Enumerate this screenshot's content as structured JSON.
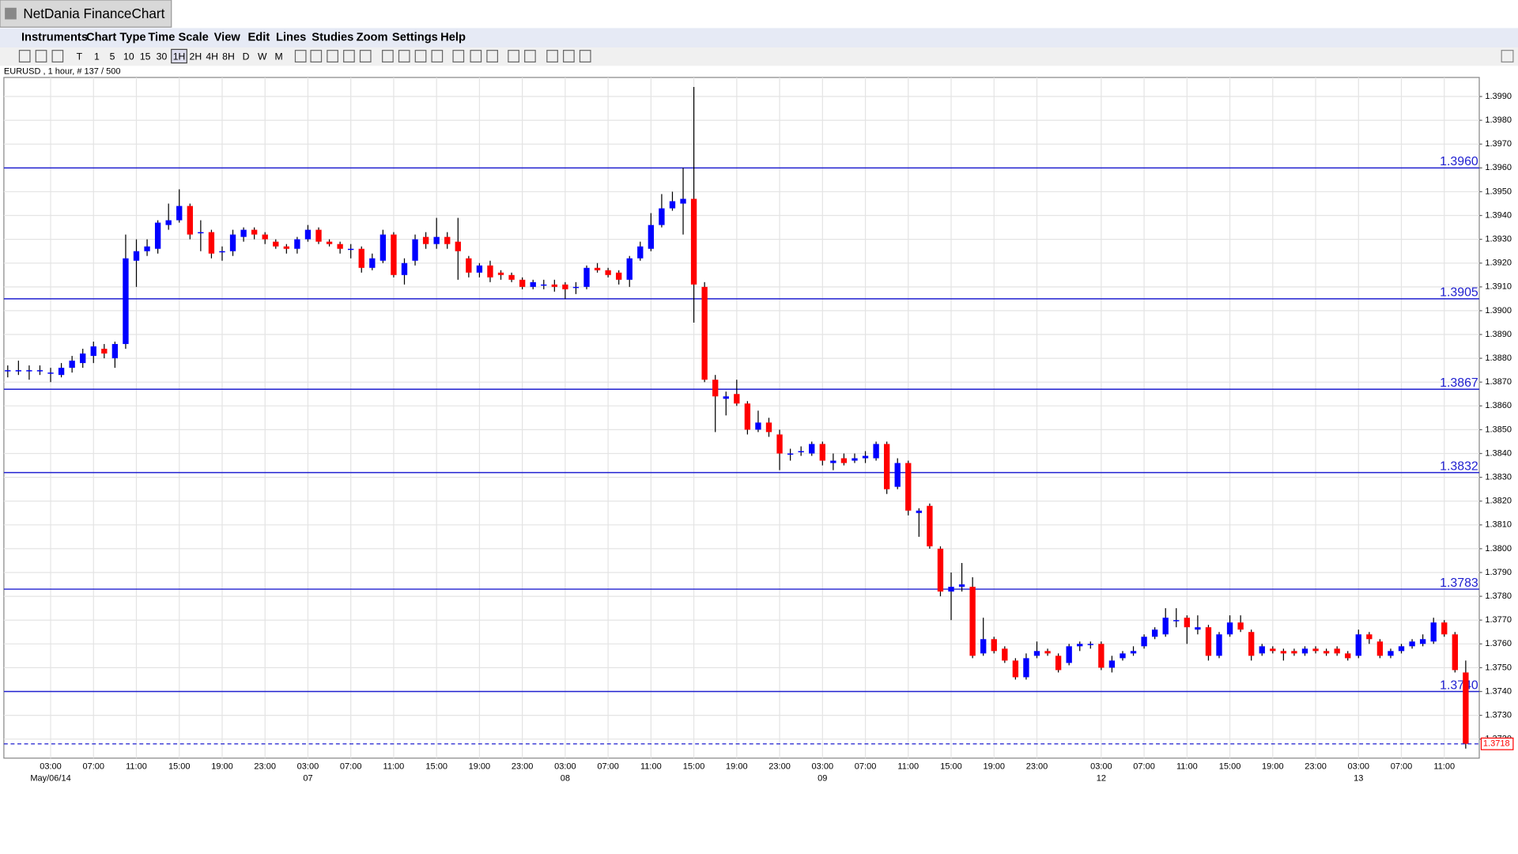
{
  "app_title": "NetDania FinanceChart",
  "menu": [
    "Instruments",
    "Chart Type",
    "Time Scale",
    "View",
    "Edit",
    "Lines",
    "Studies",
    "Zoom",
    "Settings",
    "Help"
  ],
  "toolbar": [
    "T",
    "1",
    "5",
    "10",
    "15",
    "30",
    "1H",
    "2H",
    "4H",
    "8H",
    "D",
    "W",
    "M"
  ],
  "chart_data": {
    "type": "candlestick",
    "title": "EURUSD , 1 hour, # 137 / 500",
    "up_color": "#0000ff",
    "down_color": "#ff0000",
    "wick_color": "#000000",
    "line_color": "#2020d0",
    "grid": true,
    "ylim": [
      1.3712,
      1.3998
    ],
    "yticks": [
      {
        "value": 1.372,
        "label": "1.3720"
      },
      {
        "value": 1.373,
        "label": "1.3730"
      },
      {
        "value": 1.374,
        "label": "1.3740"
      },
      {
        "value": 1.375,
        "label": "1.3750"
      },
      {
        "value": 1.376,
        "label": "1.3760"
      },
      {
        "value": 1.377,
        "label": "1.3770"
      },
      {
        "value": 1.378,
        "label": "1.3780"
      },
      {
        "value": 1.379,
        "label": "1.3790"
      },
      {
        "value": 1.38,
        "label": "1.3800"
      },
      {
        "value": 1.381,
        "label": "1.3810"
      },
      {
        "value": 1.382,
        "label": "1.3820"
      },
      {
        "value": 1.383,
        "label": "1.3830"
      },
      {
        "value": 1.384,
        "label": "1.3840"
      },
      {
        "value": 1.385,
        "label": "1.3850"
      },
      {
        "value": 1.386,
        "label": "1.3860"
      },
      {
        "value": 1.387,
        "label": "1.3870"
      },
      {
        "value": 1.388,
        "label": "1.3880"
      },
      {
        "value": 1.389,
        "label": "1.3890"
      },
      {
        "value": 1.39,
        "label": "1.3900"
      },
      {
        "value": 1.391,
        "label": "1.3910"
      },
      {
        "value": 1.392,
        "label": "1.3920"
      },
      {
        "value": 1.393,
        "label": "1.3930"
      },
      {
        "value": 1.394,
        "label": "1.3940"
      },
      {
        "value": 1.395,
        "label": "1.3950"
      },
      {
        "value": 1.396,
        "label": "1.3960"
      },
      {
        "value": 1.397,
        "label": "1.3970"
      },
      {
        "value": 1.398,
        "label": "1.3980"
      },
      {
        "value": 1.399,
        "label": "1.3990"
      }
    ],
    "lines": [
      {
        "value": 1.396,
        "label": "1.3960"
      },
      {
        "value": 1.3905,
        "label": "1.3905"
      },
      {
        "value": 1.3867,
        "label": "1.3867"
      },
      {
        "value": 1.3832,
        "label": "1.3832"
      },
      {
        "value": 1.3783,
        "label": "1.3783"
      },
      {
        "value": 1.374,
        "label": "1.3740"
      }
    ],
    "last_price": {
      "value": 1.3718,
      "label": "1.3718"
    },
    "categories": [
      null,
      null,
      null,
      null,
      "03:00",
      null,
      null,
      null,
      "07:00",
      null,
      null,
      null,
      "11:00",
      null,
      null,
      null,
      "15:00",
      null,
      null,
      null,
      "19:00",
      null,
      null,
      null,
      "23:00",
      null,
      null,
      null,
      "03:00",
      null,
      null,
      null,
      "07:00",
      null,
      null,
      null,
      "11:00",
      null,
      null,
      null,
      "15:00",
      null,
      null,
      null,
      "19:00",
      null,
      null,
      null,
      "23:00",
      null,
      null,
      null,
      "03:00",
      null,
      null,
      null,
      "07:00",
      null,
      null,
      null,
      "11:00",
      null,
      null,
      null,
      "15:00",
      null,
      null,
      null,
      "19:00",
      null,
      null,
      null,
      "23:00",
      null,
      null,
      null,
      "03:00",
      null,
      null,
      null,
      "07:00",
      null,
      null,
      null,
      "11:00",
      null,
      null,
      null,
      "15:00",
      null,
      null,
      null,
      "19:00",
      null,
      null,
      null,
      "23:00",
      null,
      null,
      null,
      null,
      null,
      "03:00",
      null,
      null,
      null,
      "07:00",
      null,
      null,
      null,
      "11:00",
      null,
      null,
      null,
      "15:00",
      null,
      null,
      null,
      "19:00",
      null,
      null,
      null,
      "23:00",
      null,
      null,
      null,
      "03:00",
      null,
      null,
      null,
      "07:00",
      null,
      null,
      null,
      "11:00",
      null,
      null
    ],
    "dates": [
      null,
      null,
      null,
      null,
      "May/06/14",
      null,
      null,
      null,
      null,
      null,
      null,
      null,
      null,
      null,
      null,
      null,
      null,
      null,
      null,
      null,
      null,
      null,
      null,
      null,
      null,
      null,
      null,
      null,
      "07",
      null,
      null,
      null,
      null,
      null,
      null,
      null,
      null,
      null,
      null,
      null,
      null,
      null,
      null,
      null,
      null,
      null,
      null,
      null,
      null,
      null,
      null,
      null,
      "08",
      null,
      null,
      null,
      null,
      null,
      null,
      null,
      null,
      null,
      null,
      null,
      null,
      null,
      null,
      null,
      null,
      null,
      null,
      null,
      null,
      null,
      null,
      null,
      "09",
      null,
      null,
      null,
      null,
      null,
      null,
      null,
      null,
      null,
      null,
      null,
      null,
      null,
      null,
      null,
      null,
      null,
      null,
      null,
      null,
      null,
      null,
      null,
      null,
      null,
      "12",
      null,
      null,
      null,
      null,
      null,
      null,
      null,
      null,
      null,
      null,
      null,
      null,
      null,
      null,
      null,
      null,
      null,
      null,
      null,
      null,
      null,
      null,
      null,
      "13",
      null,
      null,
      null,
      null,
      null,
      null,
      null,
      null,
      null,
      null
    ],
    "series": [
      {
        "name": "EURUSD",
        "open": [
          1.3875,
          1.3875,
          1.3875,
          1.3875,
          1.3874,
          1.3873,
          1.3876,
          1.3878,
          1.3881,
          1.3884,
          1.388,
          1.3886,
          1.3921,
          1.3925,
          1.3926,
          1.3936,
          1.3938,
          1.3944,
          1.3933,
          1.3933,
          1.3925,
          1.3925,
          1.3931,
          1.3934,
          1.3932,
          1.3929,
          1.3927,
          1.3926,
          1.393,
          1.3934,
          1.3929,
          1.3928,
          1.3926,
          1.3926,
          1.3918,
          1.3921,
          1.3932,
          1.3915,
          1.3921,
          1.3931,
          1.3928,
          1.3931,
          1.3929,
          1.3922,
          1.3916,
          1.3919,
          1.3916,
          1.3915,
          1.3913,
          1.391,
          1.3911,
          1.3911,
          1.3911,
          1.391,
          1.391,
          1.3918,
          1.3917,
          1.3916,
          1.3913,
          1.3922,
          1.3926,
          1.3936,
          1.3943,
          1.3945,
          1.3947,
          1.391,
          1.3871,
          1.3863,
          1.3865,
          1.3861,
          1.385,
          1.3853,
          1.3848,
          1.384,
          1.3841,
          1.384,
          1.3844,
          1.3836,
          1.3838,
          1.3837,
          1.3838,
          1.3838,
          1.3844,
          1.3826,
          1.3836,
          1.3815,
          1.3818,
          1.38,
          1.3782,
          1.3784,
          1.3784,
          1.3756,
          1.3762,
          1.3758,
          1.3753,
          1.3746,
          1.3755,
          1.3757,
          1.3755,
          1.3752,
          1.3759,
          1.376,
          1.376,
          1.375,
          1.3754,
          1.3756,
          1.3759,
          1.3763,
          1.3764,
          1.377,
          1.3771,
          1.3766,
          1.3767,
          1.3755,
          1.3764,
          1.3769,
          1.3765,
          1.3756,
          1.3758,
          1.3757,
          1.3757,
          1.3756,
          1.3758,
          1.3757,
          1.3758,
          1.3756,
          1.3755,
          1.3764,
          1.3761,
          1.3755,
          1.3757,
          1.3759,
          1.376,
          1.3761,
          1.3769,
          1.3764,
          1.3748
        ],
        "high": [
          1.3877,
          1.3879,
          1.3877,
          1.3877,
          1.3876,
          1.3878,
          1.3881,
          1.3884,
          1.3887,
          1.3886,
          1.3887,
          1.3932,
          1.393,
          1.393,
          1.3938,
          1.3945,
          1.3951,
          1.3945,
          1.3938,
          1.3934,
          1.3927,
          1.3934,
          1.3935,
          1.3935,
          1.3933,
          1.393,
          1.3928,
          1.3931,
          1.3936,
          1.3935,
          1.393,
          1.3929,
          1.3928,
          1.3927,
          1.3924,
          1.3934,
          1.3933,
          1.3922,
          1.3932,
          1.3933,
          1.3939,
          1.3933,
          1.3939,
          1.3923,
          1.392,
          1.3921,
          1.3917,
          1.3916,
          1.3914,
          1.3913,
          1.3913,
          1.3913,
          1.3912,
          1.3912,
          1.3919,
          1.392,
          1.3918,
          1.3917,
          1.3923,
          1.3929,
          1.3941,
          1.3949,
          1.395,
          1.396,
          1.3994,
          1.3912,
          1.3873,
          1.3866,
          1.3871,
          1.3862,
          1.3858,
          1.3855,
          1.385,
          1.3842,
          1.3843,
          1.3845,
          1.3845,
          1.384,
          1.384,
          1.384,
          1.3841,
          1.3845,
          1.3845,
          1.3838,
          1.3837,
          1.3817,
          1.3819,
          1.3801,
          1.379,
          1.3794,
          1.3788,
          1.3771,
          1.3763,
          1.3759,
          1.3754,
          1.3756,
          1.3761,
          1.3758,
          1.3756,
          1.376,
          1.3761,
          1.3761,
          1.3761,
          1.3755,
          1.3757,
          1.3759,
          1.3764,
          1.3767,
          1.3775,
          1.3775,
          1.3772,
          1.3772,
          1.3768,
          1.3765,
          1.3772,
          1.3772,
          1.3766,
          1.376,
          1.3759,
          1.3758,
          1.3758,
          1.3759,
          1.3759,
          1.3758,
          1.3759,
          1.3757,
          1.3766,
          1.3765,
          1.3762,
          1.3758,
          1.376,
          1.3762,
          1.3764,
          1.3771,
          1.377,
          1.3765,
          1.3753
        ],
        "low": [
          1.3872,
          1.3873,
          1.3871,
          1.3873,
          1.387,
          1.3872,
          1.3874,
          1.3876,
          1.3878,
          1.388,
          1.3876,
          1.3884,
          1.391,
          1.3923,
          1.3924,
          1.3934,
          1.3937,
          1.393,
          1.3925,
          1.3922,
          1.3921,
          1.3923,
          1.3929,
          1.393,
          1.3928,
          1.3926,
          1.3924,
          1.3924,
          1.3929,
          1.3928,
          1.3927,
          1.3924,
          1.3922,
          1.3916,
          1.3917,
          1.392,
          1.3914,
          1.3911,
          1.3919,
          1.3926,
          1.3926,
          1.3926,
          1.3913,
          1.3914,
          1.3914,
          1.3912,
          1.3913,
          1.3912,
          1.3909,
          1.3909,
          1.3909,
          1.3908,
          1.3905,
          1.3907,
          1.3909,
          1.3916,
          1.3914,
          1.3911,
          1.391,
          1.3921,
          1.3925,
          1.3935,
          1.3942,
          1.3932,
          1.3895,
          1.387,
          1.3849,
          1.3856,
          1.386,
          1.3848,
          1.3849,
          1.3847,
          1.3833,
          1.3837,
          1.3839,
          1.3839,
          1.3835,
          1.3833,
          1.3835,
          1.3836,
          1.3836,
          1.3837,
          1.3823,
          1.3825,
          1.3814,
          1.3805,
          1.38,
          1.378,
          1.377,
          1.3782,
          1.3754,
          1.3755,
          1.3756,
          1.3752,
          1.3745,
          1.3745,
          1.3754,
          1.3755,
          1.3748,
          1.3751,
          1.3757,
          1.3758,
          1.3749,
          1.3748,
          1.3753,
          1.3755,
          1.3758,
          1.3762,
          1.3763,
          1.3767,
          1.376,
          1.3764,
          1.3753,
          1.3754,
          1.3763,
          1.3765,
          1.3753,
          1.3755,
          1.3756,
          1.3753,
          1.3755,
          1.3755,
          1.3756,
          1.3755,
          1.3755,
          1.3753,
          1.3754,
          1.376,
          1.3754,
          1.3754,
          1.3756,
          1.3758,
          1.3759,
          1.376,
          1.3763,
          1.3748,
          1.3716
        ],
        "close": [
          1.3875,
          1.3875,
          1.3875,
          1.3875,
          1.3874,
          1.3876,
          1.3879,
          1.3882,
          1.3885,
          1.3882,
          1.3886,
          1.3922,
          1.3925,
          1.3927,
          1.3937,
          1.3938,
          1.3944,
          1.3932,
          1.3933,
          1.3924,
          1.3925,
          1.3932,
          1.3934,
          1.3932,
          1.393,
          1.3927,
          1.3926,
          1.393,
          1.3934,
          1.3929,
          1.3928,
          1.3926,
          1.3926,
          1.3918,
          1.3922,
          1.3932,
          1.3915,
          1.392,
          1.393,
          1.3928,
          1.3931,
          1.3928,
          1.3925,
          1.3916,
          1.3919,
          1.3914,
          1.3915,
          1.3913,
          1.391,
          1.3912,
          1.3911,
          1.391,
          1.3909,
          1.391,
          1.3918,
          1.3917,
          1.3915,
          1.3913,
          1.3922,
          1.3927,
          1.3936,
          1.3943,
          1.3946,
          1.3947,
          1.3911,
          1.3871,
          1.3864,
          1.3864,
          1.3861,
          1.385,
          1.3853,
          1.3849,
          1.384,
          1.384,
          1.3841,
          1.3844,
          1.3837,
          1.3837,
          1.3836,
          1.3838,
          1.3839,
          1.3844,
          1.3825,
          1.3836,
          1.3816,
          1.3816,
          1.3801,
          1.3782,
          1.3784,
          1.3785,
          1.3755,
          1.3762,
          1.3757,
          1.3753,
          1.3746,
          1.3754,
          1.3757,
          1.3756,
          1.3749,
          1.3759,
          1.376,
          1.376,
          1.375,
          1.3753,
          1.3756,
          1.3757,
          1.3763,
          1.3766,
          1.3771,
          1.377,
          1.3767,
          1.3767,
          1.3755,
          1.3764,
          1.3769,
          1.3766,
          1.3755,
          1.3759,
          1.3757,
          1.3756,
          1.3756,
          1.3758,
          1.3757,
          1.3756,
          1.3756,
          1.3754,
          1.3764,
          1.3762,
          1.3755,
          1.3757,
          1.3759,
          1.3761,
          1.3762,
          1.3769,
          1.3764,
          1.3749,
          1.3718
        ]
      }
    ]
  }
}
